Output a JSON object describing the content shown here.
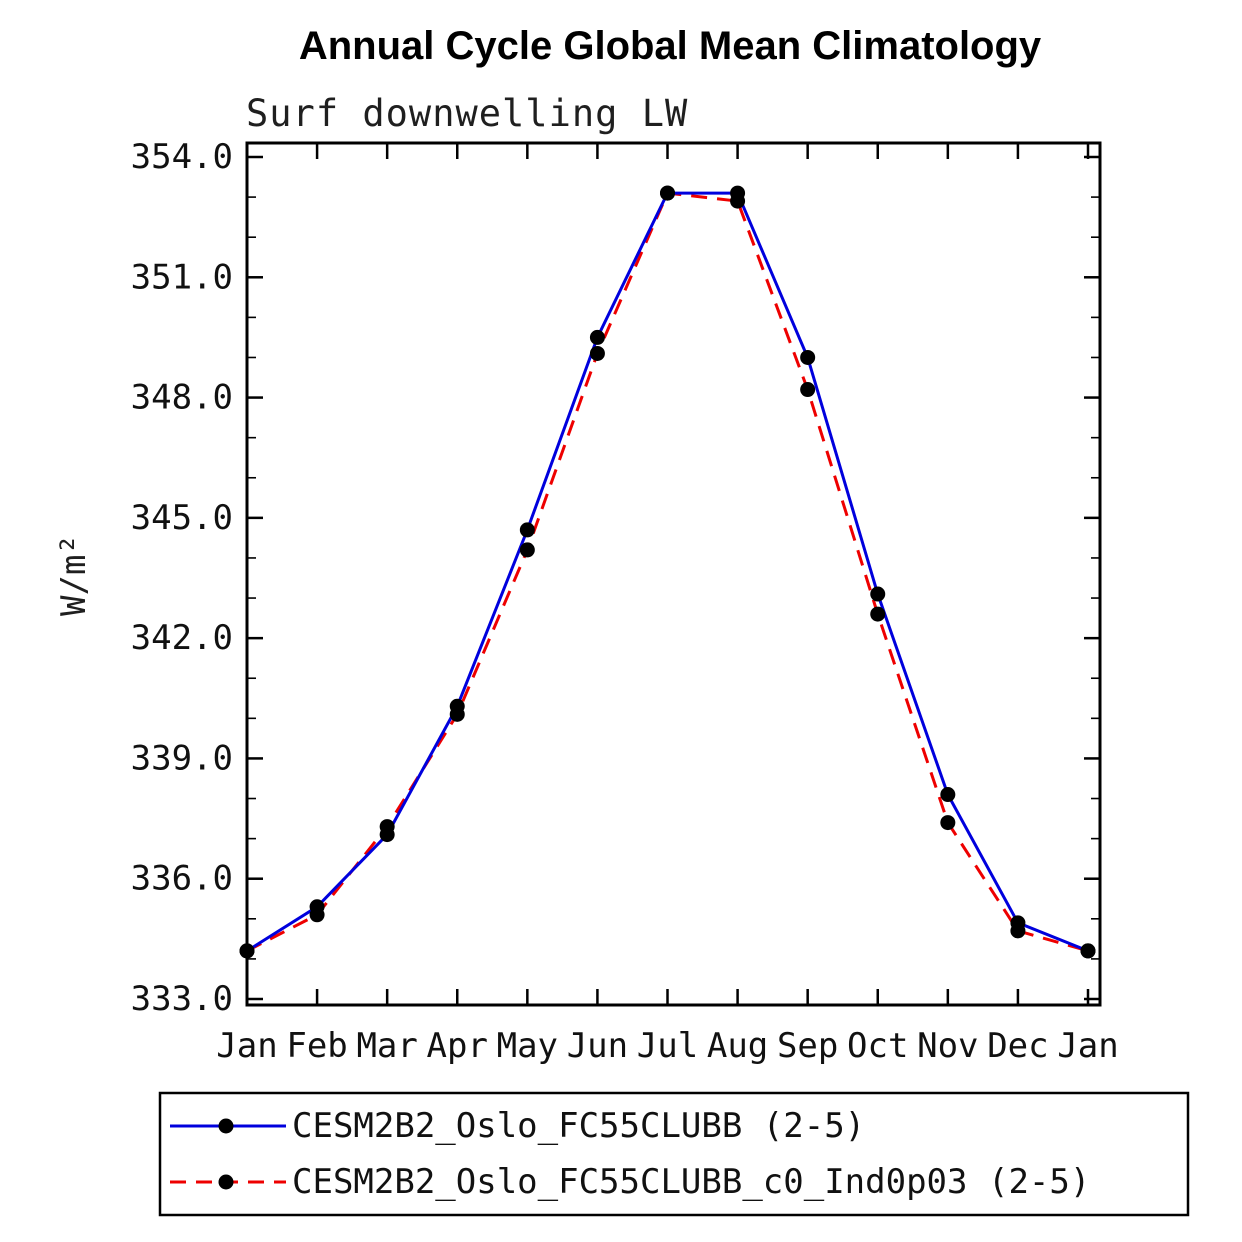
{
  "page": {
    "background": "#ffffff"
  },
  "chart_data": {
    "type": "line",
    "title": "Annual Cycle Global Mean Climatology",
    "subtitle": "Surf downwelling LW",
    "ylabel": "W/m²",
    "xlabel": "",
    "x_categories": [
      "Jan",
      "Feb",
      "Mar",
      "Apr",
      "May",
      "Jun",
      "Jul",
      "Aug",
      "Sep",
      "Oct",
      "Nov",
      "Dec",
      "Jan"
    ],
    "ylim": [
      333.0,
      354.0
    ],
    "ytick_step": 3.0,
    "ytick_minor_step": 1.0,
    "ytick_labels": [
      "333.0",
      "336.0",
      "339.0",
      "342.0",
      "345.0",
      "348.0",
      "351.0",
      "354.0"
    ],
    "grid": false,
    "legend_position": "bottom-left",
    "axis_color": "#000000",
    "marker_color": "#000000",
    "series": [
      {
        "name": "CESM2B2_Oslo_FC55CLUBB (2-5)",
        "color": "#0000dd",
        "line_style": "solid",
        "values": [
          334.2,
          335.3,
          337.1,
          340.3,
          344.7,
          349.5,
          353.1,
          353.1,
          349.0,
          343.1,
          338.1,
          334.9,
          334.2
        ]
      },
      {
        "name": "CESM2B2_Oslo_FC55CLUBB_c0_Ind0p03 (2-5)",
        "color": "#ee0000",
        "line_style": "dashed",
        "values": [
          334.2,
          335.1,
          337.3,
          340.1,
          344.2,
          349.1,
          353.1,
          352.9,
          348.2,
          342.6,
          337.4,
          334.7,
          334.2
        ]
      }
    ]
  }
}
